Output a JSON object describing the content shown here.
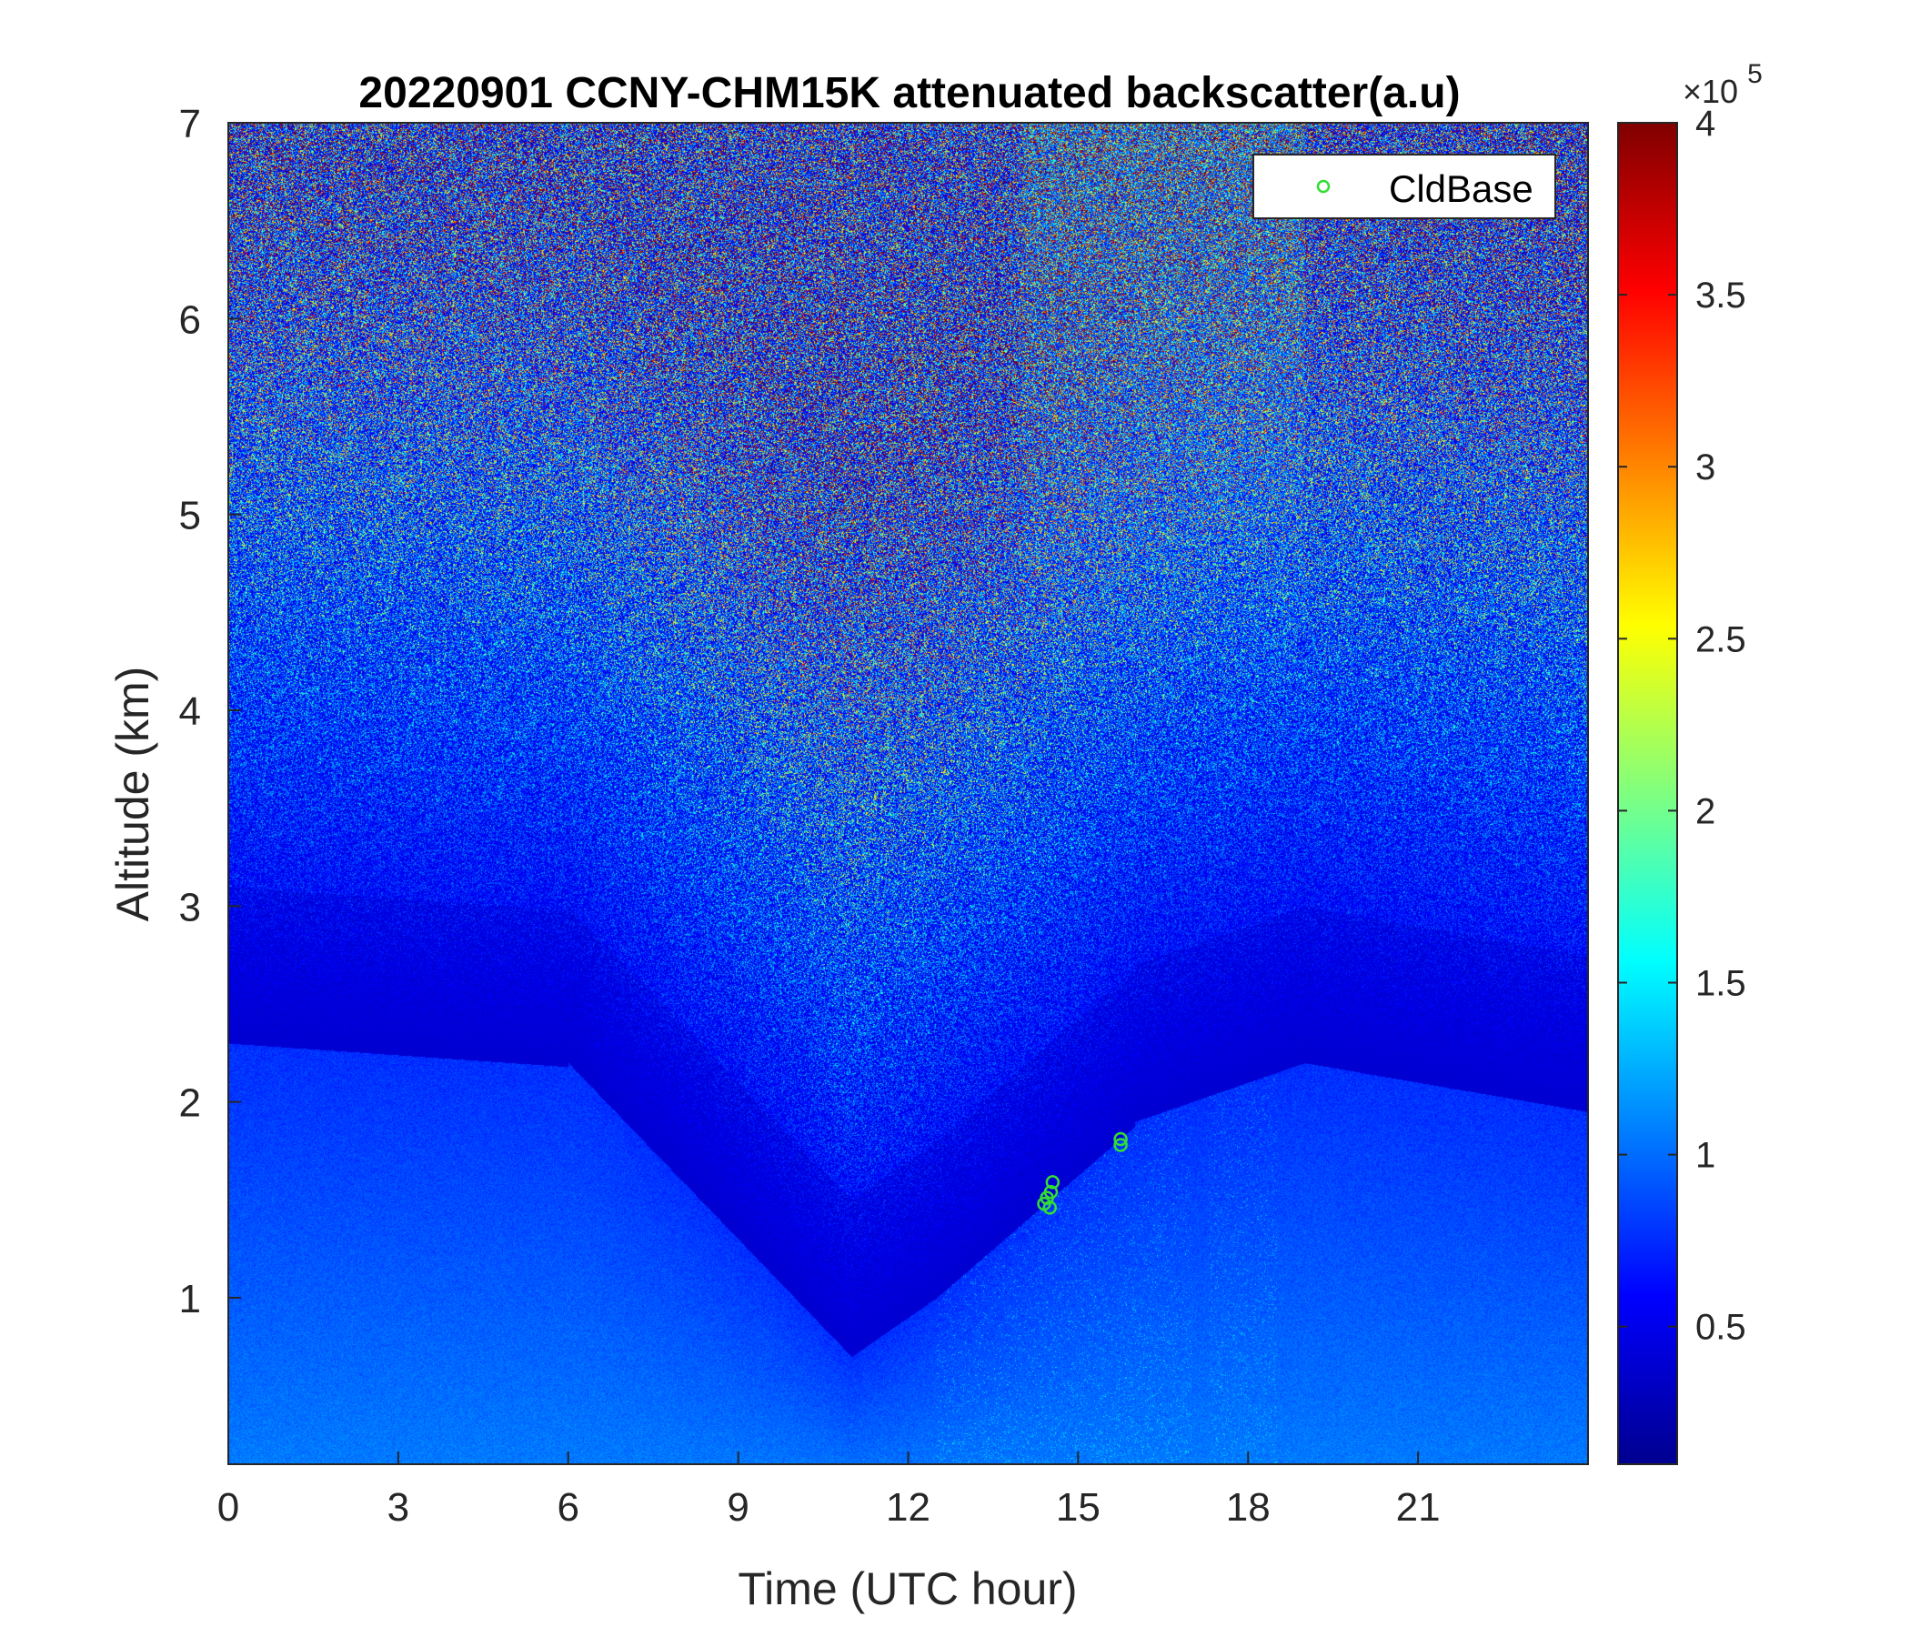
{
  "figure": {
    "title": "20220901 CCNY-CHM15K attenuated backscatter(a.u)",
    "xlabel": "Time (UTC hour)",
    "ylabel": "Altitude (km)"
  },
  "legend": {
    "label": "CldBase",
    "marker_color": "#33dd33",
    "placement": "top-right"
  },
  "colorbar": {
    "multiplier_base": "×10",
    "multiplier_exponent": "5",
    "ticks": [
      {
        "value": 0.5,
        "label": "0.5"
      },
      {
        "value": 1,
        "label": "1"
      },
      {
        "value": 1.5,
        "label": "1.5"
      },
      {
        "value": 2,
        "label": "2"
      },
      {
        "value": 2.5,
        "label": "2.5"
      },
      {
        "value": 3,
        "label": "3"
      },
      {
        "value": 3.5,
        "label": "3.5"
      },
      {
        "value": 4,
        "label": "4"
      }
    ],
    "range": [
      0.1,
      4
    ],
    "colormap": "jet"
  },
  "chart_data": {
    "type": "heatmap",
    "title": "20220901 CCNY-CHM15K attenuated backscatter(a.u)",
    "xlabel": "Time (UTC hour)",
    "ylabel": "Altitude (km)",
    "xlim": [
      0,
      24
    ],
    "ylim": [
      0.15,
      7
    ],
    "xticks": [
      0,
      3,
      6,
      9,
      12,
      15,
      18,
      21
    ],
    "xtick_labels": [
      "0",
      "3",
      "6",
      "9",
      "12",
      "15",
      "18",
      "21"
    ],
    "yticks": [
      1,
      2,
      3,
      4,
      5,
      6,
      7
    ],
    "ytick_labels": [
      "1",
      "2",
      "3",
      "4",
      "5",
      "6",
      "7"
    ],
    "color_range": [
      10000,
      400000
    ],
    "colormap": "jet",
    "grid": false,
    "legend_position": "top-right",
    "series": [
      {
        "name": "CldBase",
        "type": "scatter",
        "marker": "circle",
        "color": "#33dd33",
        "points": [
          {
            "x": 14.4,
            "y": 1.48
          },
          {
            "x": 14.45,
            "y": 1.51
          },
          {
            "x": 14.5,
            "y": 1.46
          },
          {
            "x": 14.52,
            "y": 1.54
          },
          {
            "x": 14.55,
            "y": 1.59
          },
          {
            "x": 15.75,
            "y": 1.78
          },
          {
            "x": 15.75,
            "y": 1.81
          }
        ]
      }
    ]
  }
}
